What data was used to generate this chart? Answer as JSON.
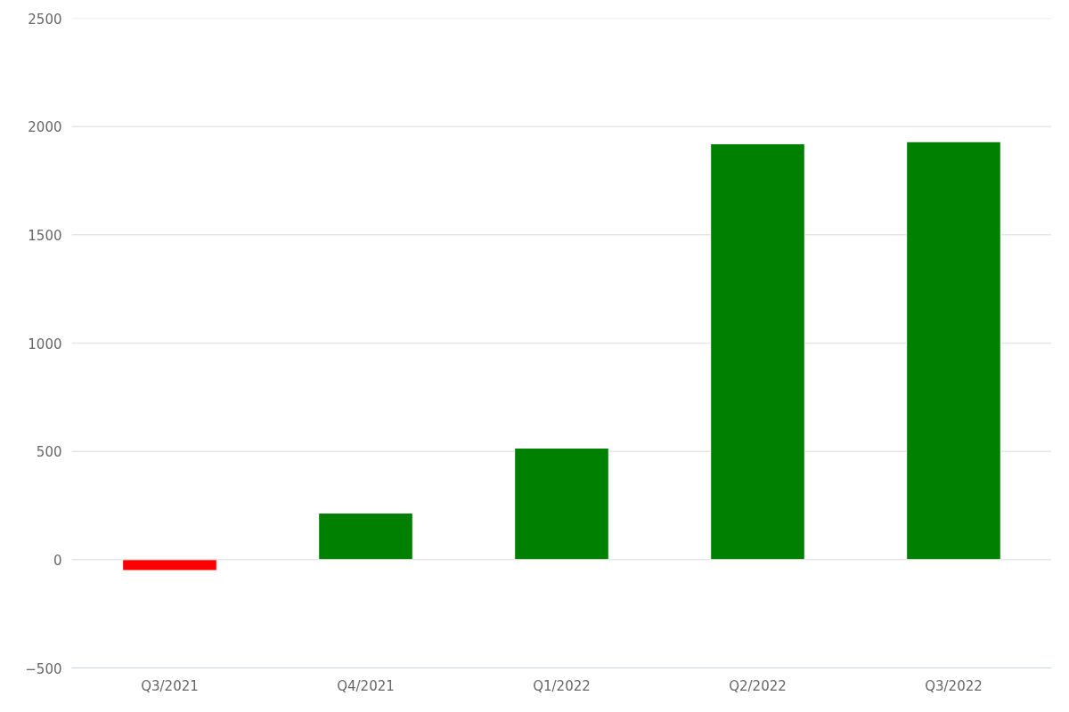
{
  "chart_data": {
    "type": "bar",
    "categories": [
      "Q3/2021",
      "Q4/2021",
      "Q1/2022",
      "Q2/2022",
      "Q3/2022"
    ],
    "values": [
      -50,
      215,
      515,
      1920,
      1930
    ],
    "colors": [
      "#ff0000",
      "#008000",
      "#008000",
      "#008000",
      "#008000"
    ],
    "ylim": [
      -500,
      2500
    ],
    "yticks": [
      -500,
      0,
      500,
      1000,
      1500,
      2000,
      2500
    ],
    "grid": "y"
  }
}
